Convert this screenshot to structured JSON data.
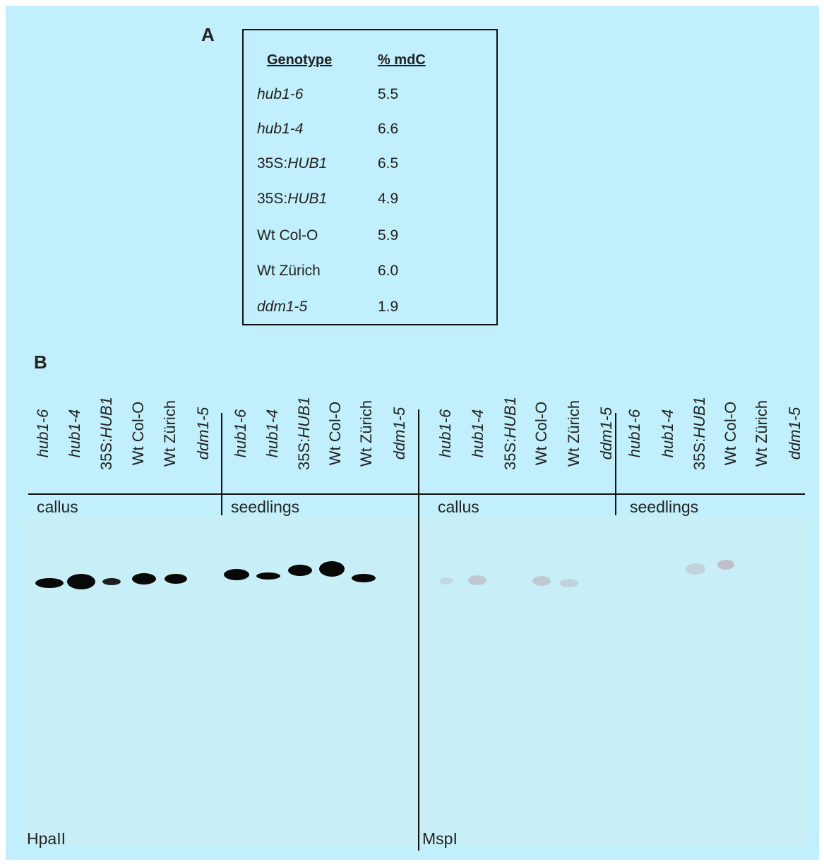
{
  "panel_a": {
    "label": "A",
    "header": [
      "Genotype",
      "% mdC"
    ],
    "rows": [
      {
        "genotype": [
          {
            "text": "hub1-6",
            "italic": true
          }
        ],
        "value": "5.5"
      },
      {
        "genotype": [
          {
            "text": "hub1-4",
            "italic": true
          }
        ],
        "value": "6.6"
      },
      {
        "genotype": [
          {
            "text": "35S:",
            "italic": false
          },
          {
            "text": "HUB1",
            "italic": true
          }
        ],
        "value": "6.5"
      },
      {
        "genotype": [
          {
            "text": "35S:",
            "italic": false
          },
          {
            "text": "HUB1",
            "italic": true
          }
        ],
        "value": "4.9"
      },
      {
        "genotype": [
          {
            "text": "Wt Col-O",
            "italic": false
          }
        ],
        "value": "5.9"
      },
      {
        "genotype": [
          {
            "text": "Wt Zürich",
            "italic": false
          }
        ],
        "value": "6.0"
      },
      {
        "genotype": [
          {
            "text": "ddm1-5",
            "italic": true
          }
        ],
        "value": "1.9"
      }
    ]
  },
  "panel_b": {
    "label": "B",
    "lane_groups": [
      {
        "tissue": "callus",
        "lanes": [
          [
            {
              "text": "hub1-6",
              "italic": true
            }
          ],
          [
            {
              "text": "hub1-4",
              "italic": true
            }
          ],
          [
            {
              "text": "35S:",
              "italic": false
            },
            {
              "text": "HUB1",
              "italic": true
            }
          ],
          [
            {
              "text": "Wt Col-O",
              "italic": false
            }
          ],
          [
            {
              "text": "Wt Zürich",
              "italic": false
            }
          ],
          [
            {
              "text": "ddm1-5",
              "italic": true
            }
          ]
        ]
      },
      {
        "tissue": "seedlings",
        "lanes": [
          [
            {
              "text": "hub1-6",
              "italic": true
            }
          ],
          [
            {
              "text": "hub1-4",
              "italic": true
            }
          ],
          [
            {
              "text": "35S:",
              "italic": false
            },
            {
              "text": "HUB1",
              "italic": true
            }
          ],
          [
            {
              "text": "Wt Col-O",
              "italic": false
            }
          ],
          [
            {
              "text": "Wt Zürich",
              "italic": false
            }
          ],
          [
            {
              "text": "ddm1-5",
              "italic": true
            }
          ]
        ]
      },
      {
        "tissue": "callus",
        "lanes": [
          [
            {
              "text": "hub1-6",
              "italic": true
            }
          ],
          [
            {
              "text": "hub1-4",
              "italic": true
            }
          ],
          [
            {
              "text": "35S:",
              "italic": false
            },
            {
              "text": "HUB1",
              "italic": true
            }
          ],
          [
            {
              "text": "Wt Col-O",
              "italic": false
            }
          ],
          [
            {
              "text": "Wt Zürich",
              "italic": false
            }
          ],
          [
            {
              "text": "ddm1-5",
              "italic": true
            }
          ]
        ]
      },
      {
        "tissue": "seedlings",
        "lanes": [
          [
            {
              "text": "hub1-6",
              "italic": true
            }
          ],
          [
            {
              "text": "hub1-4",
              "italic": true
            }
          ],
          [
            {
              "text": "35S:",
              "italic": false
            },
            {
              "text": "HUB1",
              "italic": true
            }
          ],
          [
            {
              "text": "Wt Col-O",
              "italic": false
            }
          ],
          [
            {
              "text": "Wt Zürich",
              "italic": false
            }
          ],
          [
            {
              "text": "ddm1-5",
              "italic": true
            }
          ]
        ]
      }
    ],
    "enzymes": [
      "HpaII",
      "MspI"
    ]
  }
}
